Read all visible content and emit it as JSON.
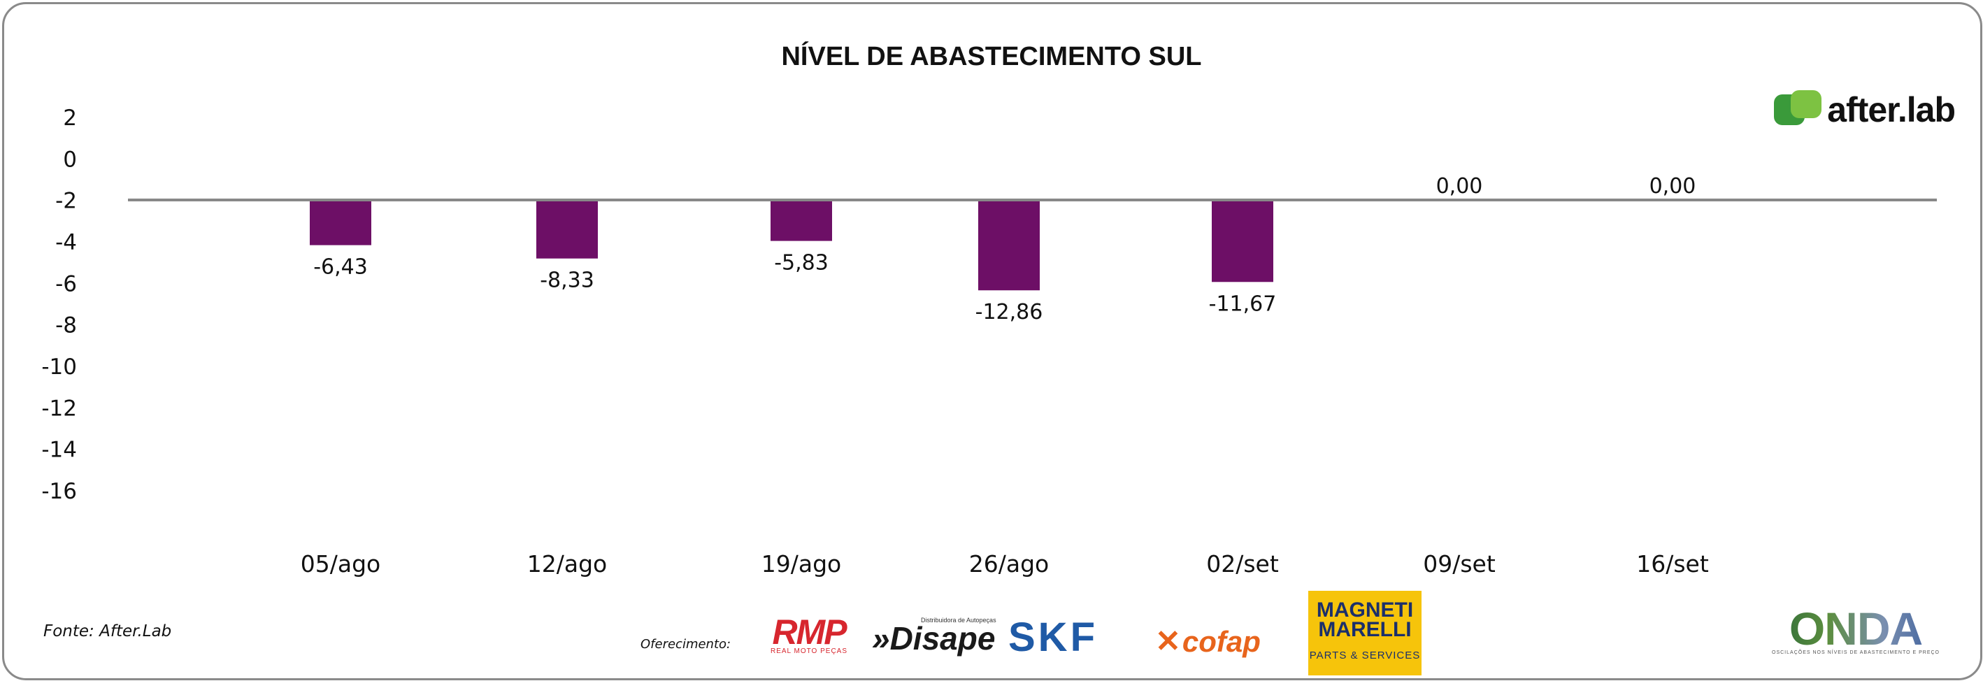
{
  "chart_data": {
    "type": "bar",
    "title": "NÍVEL DE ABASTECIMENTO SUL",
    "categories": [
      "05/ago",
      "12/ago",
      "19/ago",
      "26/ago",
      "02/set",
      "09/set",
      "16/set"
    ],
    "values": [
      -6.43,
      -8.33,
      -5.83,
      -12.86,
      -11.67,
      0.0,
      0.0
    ],
    "value_labels": [
      "-6,43",
      "-8,33",
      "-5,83",
      "-12,86",
      "-11,67",
      "0,00",
      "0,00"
    ],
    "y_ticks": [
      "2",
      "0",
      "-2",
      "-4",
      "-6",
      "-8",
      "-10",
      "-12",
      "-14",
      "-16"
    ],
    "ylim": [
      -16,
      2
    ],
    "bar_color": "#6d0f66",
    "baseline_color": "#888888",
    "grid": false,
    "legend": "none"
  },
  "source": "Fonte: After.Lab",
  "sponsors": {
    "label": "Oferecimento:",
    "rmp": "RMP",
    "rmp_sub": "REAL MOTO PEÇAS",
    "disape_tag": "Distribuidora de Autopeças",
    "disape": "»Disape",
    "skf": "SKF",
    "cofap": "cofap",
    "magneti_line1": "MAGNETI",
    "magneti_line2": "MARELLI",
    "magneti_line3": "PARTS & SERVICES"
  },
  "brand_logo": "after.lab",
  "onda": {
    "name": "ONDA",
    "tagline": "OSCILAÇÕES NOS NÍVEIS DE ABASTECIMENTO E PREÇO"
  },
  "colors": {
    "afterlab_green": "#7dc242",
    "skf_blue": "#1f5aa6",
    "cofap_orange": "#e8641c",
    "magneti_yellow": "#f6c40b",
    "rmp_red": "#d7262e"
  }
}
